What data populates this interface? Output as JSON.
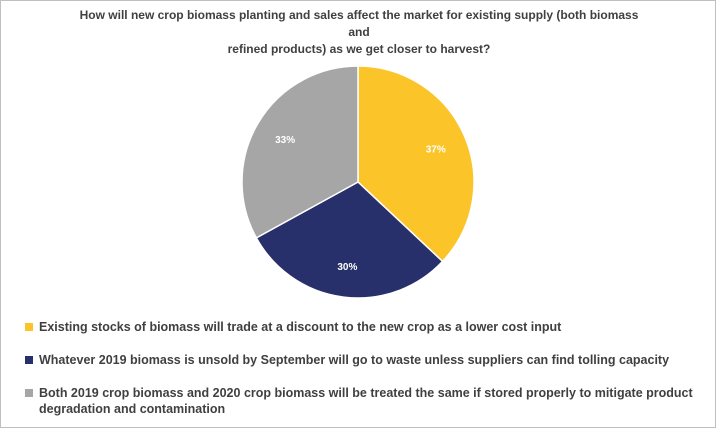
{
  "chart_data": {
    "type": "pie",
    "title_line1": "How will new crop biomass planting and sales affect the market for existing supply (both biomass and",
    "title_line2": "refined products) as we get closer to harvest?",
    "slices": [
      {
        "name": "Existing stocks of biomass will trade at a discount to the new crop as a lower cost input",
        "value": 37,
        "label": "37%",
        "color": "#FBC52A"
      },
      {
        "name": "Whatever 2019 biomass is unsold by September will go to waste unless suppliers can find tolling capacity",
        "value": 30,
        "label": "30%",
        "color": "#27306A"
      },
      {
        "name": "Both 2019 crop biomass and 2020 crop biomass will be treated the same if stored properly to mitigate product degradation and contamination",
        "value": 33,
        "label": "33%",
        "color": "#A6A6A6"
      }
    ],
    "legend_position": "bottom",
    "label_color": "#ffffff"
  }
}
